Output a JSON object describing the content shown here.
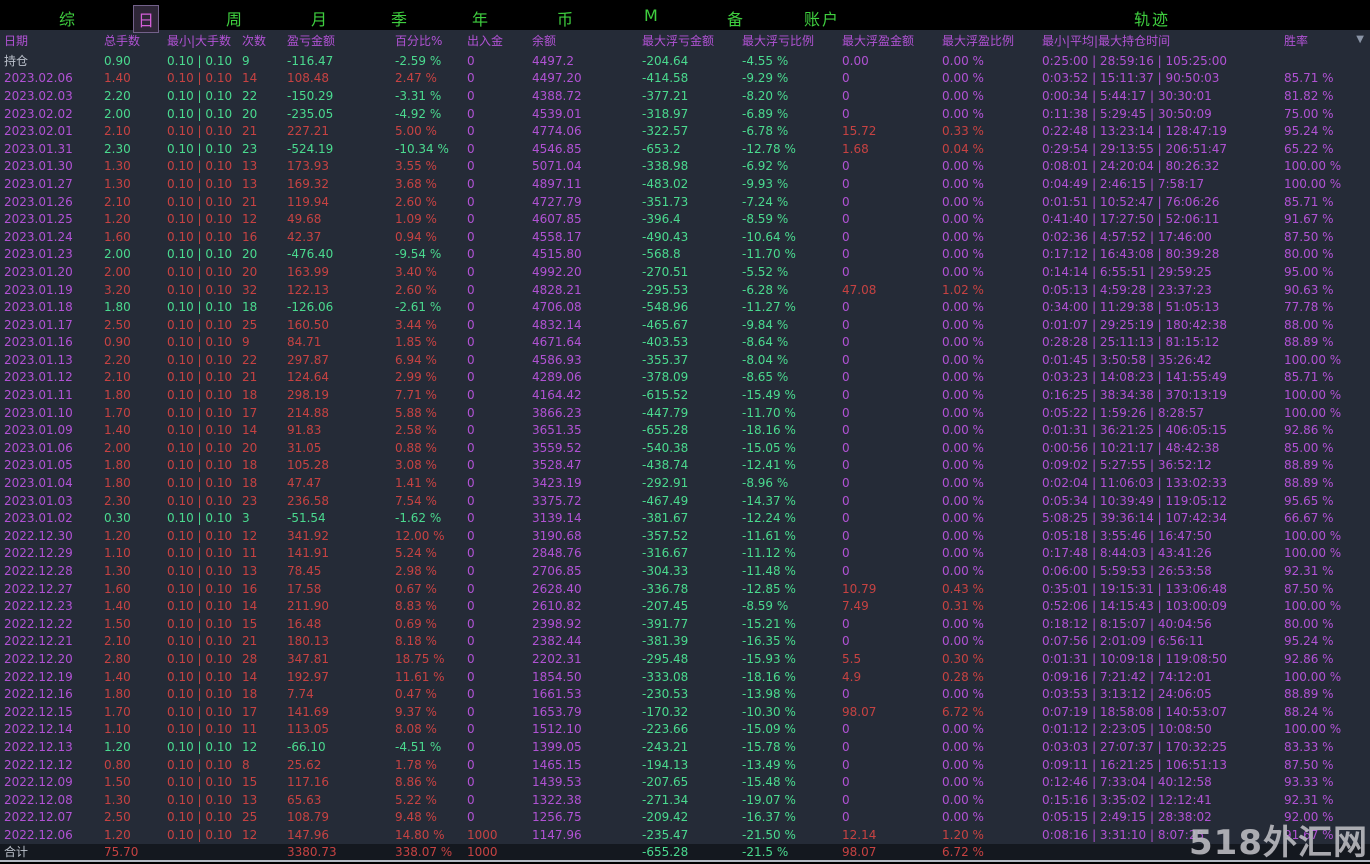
{
  "menu": {
    "items": [
      {
        "label": "综",
        "selected": false
      },
      {
        "label": "日",
        "selected": true
      },
      {
        "label": "周",
        "selected": false
      },
      {
        "label": "月",
        "selected": false
      },
      {
        "label": "季",
        "selected": false
      },
      {
        "label": "年",
        "selected": false
      },
      {
        "label": "币",
        "selected": false
      },
      {
        "label": "M",
        "selected": false
      },
      {
        "label": "备",
        "selected": false
      },
      {
        "label": "账户",
        "selected": false
      },
      {
        "label": "轨迹",
        "selected": false
      }
    ]
  },
  "icons": {
    "scroll_arrow": "▼"
  },
  "watermark": {
    "text": "518外汇网"
  },
  "colors": {
    "background": "#252b37",
    "menu_bg": "#000000",
    "purple": "#b152d4",
    "red": "#c64242",
    "green": "#4ada8f",
    "gray": "#bcc2cc",
    "menu_green": "#3fcf3f",
    "total_row_bg": "#14181f",
    "watermark": "#bebec3"
  },
  "table": {
    "columns": [
      "日期",
      "总手数",
      "最小|大手数",
      "次数",
      "盈亏金额",
      "百分比%",
      "出入金",
      "余额",
      "最大浮亏金额",
      "最大浮亏比例",
      "最大浮盈金额",
      "最大浮盈比例",
      "最小|平均|最大持仓时间",
      "胜率"
    ],
    "rows": [
      {
        "kind": "position",
        "trend": "down",
        "cells": [
          "持仓",
          "0.90",
          "0.10 | 0.10",
          "9",
          "-116.47",
          "-2.59 %",
          "0",
          "4497.2",
          "-204.64",
          "-4.55 %",
          "0.00",
          "0.00 %",
          "0:25:00 | 28:59:16 | 105:25:00",
          ""
        ]
      },
      {
        "kind": "date",
        "trend": "up",
        "cells": [
          "2023.02.06",
          "1.40",
          "0.10 | 0.10",
          "14",
          "108.48",
          "2.47 %",
          "0",
          "4497.20",
          "-414.58",
          "-9.29 %",
          "0",
          "0.00 %",
          "0:03:52 | 15:11:37 | 90:50:03",
          "85.71 %"
        ]
      },
      {
        "kind": "date",
        "trend": "down",
        "cells": [
          "2023.02.03",
          "2.20",
          "0.10 | 0.10",
          "22",
          "-150.29",
          "-3.31 %",
          "0",
          "4388.72",
          "-377.21",
          "-8.20 %",
          "0",
          "0.00 %",
          "0:00:34 | 5:44:17 | 30:30:01",
          "81.82 %"
        ]
      },
      {
        "kind": "date",
        "trend": "down",
        "cells": [
          "2023.02.02",
          "2.00",
          "0.10 | 0.10",
          "20",
          "-235.05",
          "-4.92 %",
          "0",
          "4539.01",
          "-318.97",
          "-6.89 %",
          "0",
          "0.00 %",
          "0:11:38 | 5:29:45 | 30:50:09",
          "75.00 %"
        ]
      },
      {
        "kind": "date",
        "trend": "up",
        "cells": [
          "2023.02.01",
          "2.10",
          "0.10 | 0.10",
          "21",
          "227.21",
          "5.00 %",
          "0",
          "4774.06",
          "-322.57",
          "-6.78 %",
          "15.72",
          "0.33 %",
          "0:22:48 | 13:23:14 | 128:47:19",
          "95.24 %"
        ]
      },
      {
        "kind": "date",
        "trend": "down",
        "cells": [
          "2023.01.31",
          "2.30",
          "0.10 | 0.10",
          "23",
          "-524.19",
          "-10.34 %",
          "0",
          "4546.85",
          "-653.2",
          "-12.78 %",
          "1.68",
          "0.04 %",
          "0:29:54 | 29:13:55 | 206:51:47",
          "65.22 %"
        ]
      },
      {
        "kind": "date",
        "trend": "up",
        "cells": [
          "2023.01.30",
          "1.30",
          "0.10 | 0.10",
          "13",
          "173.93",
          "3.55 %",
          "0",
          "5071.04",
          "-338.98",
          "-6.92 %",
          "0",
          "0.00 %",
          "0:08:01 | 24:20:04 | 80:26:32",
          "100.00 %"
        ]
      },
      {
        "kind": "date",
        "trend": "up",
        "cells": [
          "2023.01.27",
          "1.30",
          "0.10 | 0.10",
          "13",
          "169.32",
          "3.68 %",
          "0",
          "4897.11",
          "-483.02",
          "-9.93 %",
          "0",
          "0.00 %",
          "0:04:49 | 2:46:15 | 7:58:17",
          "100.00 %"
        ]
      },
      {
        "kind": "date",
        "trend": "up",
        "cells": [
          "2023.01.26",
          "2.10",
          "0.10 | 0.10",
          "21",
          "119.94",
          "2.60 %",
          "0",
          "4727.79",
          "-351.73",
          "-7.24 %",
          "0",
          "0.00 %",
          "0:01:51 | 10:52:47 | 76:06:26",
          "85.71 %"
        ]
      },
      {
        "kind": "date",
        "trend": "up",
        "cells": [
          "2023.01.25",
          "1.20",
          "0.10 | 0.10",
          "12",
          "49.68",
          "1.09 %",
          "0",
          "4607.85",
          "-396.4",
          "-8.59 %",
          "0",
          "0.00 %",
          "0:41:40 | 17:27:50 | 52:06:11",
          "91.67 %"
        ]
      },
      {
        "kind": "date",
        "trend": "up",
        "cells": [
          "2023.01.24",
          "1.60",
          "0.10 | 0.10",
          "16",
          "42.37",
          "0.94 %",
          "0",
          "4558.17",
          "-490.43",
          "-10.64 %",
          "0",
          "0.00 %",
          "0:02:36 | 4:57:52 | 17:46:00",
          "87.50 %"
        ]
      },
      {
        "kind": "date",
        "trend": "down",
        "cells": [
          "2023.01.23",
          "2.00",
          "0.10 | 0.10",
          "20",
          "-476.40",
          "-9.54 %",
          "0",
          "4515.80",
          "-568.8",
          "-11.70 %",
          "0",
          "0.00 %",
          "0:17:12 | 16:43:08 | 80:39:28",
          "80.00 %"
        ]
      },
      {
        "kind": "date",
        "trend": "up",
        "cells": [
          "2023.01.20",
          "2.00",
          "0.10 | 0.10",
          "20",
          "163.99",
          "3.40 %",
          "0",
          "4992.20",
          "-270.51",
          "-5.52 %",
          "0",
          "0.00 %",
          "0:14:14 | 6:55:51 | 29:59:25",
          "95.00 %"
        ]
      },
      {
        "kind": "date",
        "trend": "up",
        "cells": [
          "2023.01.19",
          "3.20",
          "0.10 | 0.10",
          "32",
          "122.13",
          "2.60 %",
          "0",
          "4828.21",
          "-295.53",
          "-6.28 %",
          "47.08",
          "1.02 %",
          "0:05:13 | 4:59:28 | 23:37:23",
          "90.63 %"
        ]
      },
      {
        "kind": "date",
        "trend": "down",
        "cells": [
          "2023.01.18",
          "1.80",
          "0.10 | 0.10",
          "18",
          "-126.06",
          "-2.61 %",
          "0",
          "4706.08",
          "-548.96",
          "-11.27 %",
          "0",
          "0.00 %",
          "0:34:00 | 11:29:38 | 51:05:13",
          "77.78 %"
        ]
      },
      {
        "kind": "date",
        "trend": "up",
        "cells": [
          "2023.01.17",
          "2.50",
          "0.10 | 0.10",
          "25",
          "160.50",
          "3.44 %",
          "0",
          "4832.14",
          "-465.67",
          "-9.84 %",
          "0",
          "0.00 %",
          "0:01:07 | 29:25:19 | 180:42:38",
          "88.00 %"
        ]
      },
      {
        "kind": "date",
        "trend": "up",
        "cells": [
          "2023.01.16",
          "0.90",
          "0.10 | 0.10",
          "9",
          "84.71",
          "1.85 %",
          "0",
          "4671.64",
          "-403.53",
          "-8.64 %",
          "0",
          "0.00 %",
          "0:28:28 | 25:11:13 | 81:15:12",
          "88.89 %"
        ]
      },
      {
        "kind": "date",
        "trend": "up",
        "cells": [
          "2023.01.13",
          "2.20",
          "0.10 | 0.10",
          "22",
          "297.87",
          "6.94 %",
          "0",
          "4586.93",
          "-355.37",
          "-8.04 %",
          "0",
          "0.00 %",
          "0:01:45 | 3:50:58 | 35:26:42",
          "100.00 %"
        ]
      },
      {
        "kind": "date",
        "trend": "up",
        "cells": [
          "2023.01.12",
          "2.10",
          "0.10 | 0.10",
          "21",
          "124.64",
          "2.99 %",
          "0",
          "4289.06",
          "-378.09",
          "-8.65 %",
          "0",
          "0.00 %",
          "0:03:23 | 14:08:23 | 141:55:49",
          "85.71 %"
        ]
      },
      {
        "kind": "date",
        "trend": "up",
        "cells": [
          "2023.01.11",
          "1.80",
          "0.10 | 0.10",
          "18",
          "298.19",
          "7.71 %",
          "0",
          "4164.42",
          "-615.52",
          "-15.49 %",
          "0",
          "0.00 %",
          "0:16:25 | 38:34:38 | 370:13:19",
          "100.00 %"
        ]
      },
      {
        "kind": "date",
        "trend": "up",
        "cells": [
          "2023.01.10",
          "1.70",
          "0.10 | 0.10",
          "17",
          "214.88",
          "5.88 %",
          "0",
          "3866.23",
          "-447.79",
          "-11.70 %",
          "0",
          "0.00 %",
          "0:05:22 | 1:59:26 | 8:28:57",
          "100.00 %"
        ]
      },
      {
        "kind": "date",
        "trend": "up",
        "cells": [
          "2023.01.09",
          "1.40",
          "0.10 | 0.10",
          "14",
          "91.83",
          "2.58 %",
          "0",
          "3651.35",
          "-655.28",
          "-18.16 %",
          "0",
          "0.00 %",
          "0:01:31 | 36:21:25 | 406:05:15",
          "92.86 %"
        ]
      },
      {
        "kind": "date",
        "trend": "up",
        "cells": [
          "2023.01.06",
          "2.00",
          "0.10 | 0.10",
          "20",
          "31.05",
          "0.88 %",
          "0",
          "3559.52",
          "-540.38",
          "-15.05 %",
          "0",
          "0.00 %",
          "0:00:56 | 10:21:17 | 48:42:38",
          "85.00 %"
        ]
      },
      {
        "kind": "date",
        "trend": "up",
        "cells": [
          "2023.01.05",
          "1.80",
          "0.10 | 0.10",
          "18",
          "105.28",
          "3.08 %",
          "0",
          "3528.47",
          "-438.74",
          "-12.41 %",
          "0",
          "0.00 %",
          "0:09:02 | 5:27:55 | 36:52:12",
          "88.89 %"
        ]
      },
      {
        "kind": "date",
        "trend": "up",
        "cells": [
          "2023.01.04",
          "1.80",
          "0.10 | 0.10",
          "18",
          "47.47",
          "1.41 %",
          "0",
          "3423.19",
          "-292.91",
          "-8.96 %",
          "0",
          "0.00 %",
          "0:02:04 | 11:06:03 | 133:02:33",
          "88.89 %"
        ]
      },
      {
        "kind": "date",
        "trend": "up",
        "cells": [
          "2023.01.03",
          "2.30",
          "0.10 | 0.10",
          "23",
          "236.58",
          "7.54 %",
          "0",
          "3375.72",
          "-467.49",
          "-14.37 %",
          "0",
          "0.00 %",
          "0:05:34 | 10:39:49 | 119:05:12",
          "95.65 %"
        ]
      },
      {
        "kind": "date",
        "trend": "down",
        "cells": [
          "2023.01.02",
          "0.30",
          "0.10 | 0.10",
          "3",
          "-51.54",
          "-1.62 %",
          "0",
          "3139.14",
          "-381.67",
          "-12.24 %",
          "0",
          "0.00 %",
          "5:08:25 | 39:36:14 | 107:42:34",
          "66.67 %"
        ]
      },
      {
        "kind": "date",
        "trend": "up",
        "cells": [
          "2022.12.30",
          "1.20",
          "0.10 | 0.10",
          "12",
          "341.92",
          "12.00 %",
          "0",
          "3190.68",
          "-357.52",
          "-11.61 %",
          "0",
          "0.00 %",
          "0:05:18 | 3:55:46 | 16:47:50",
          "100.00 %"
        ]
      },
      {
        "kind": "date",
        "trend": "up",
        "cells": [
          "2022.12.29",
          "1.10",
          "0.10 | 0.10",
          "11",
          "141.91",
          "5.24 %",
          "0",
          "2848.76",
          "-316.67",
          "-11.12 %",
          "0",
          "0.00 %",
          "0:17:48 | 8:44:03 | 43:41:26",
          "100.00 %"
        ]
      },
      {
        "kind": "date",
        "trend": "up",
        "cells": [
          "2022.12.28",
          "1.30",
          "0.10 | 0.10",
          "13",
          "78.45",
          "2.98 %",
          "0",
          "2706.85",
          "-304.33",
          "-11.48 %",
          "0",
          "0.00 %",
          "0:06:00 | 5:59:53 | 26:53:58",
          "92.31 %"
        ]
      },
      {
        "kind": "date",
        "trend": "up",
        "cells": [
          "2022.12.27",
          "1.60",
          "0.10 | 0.10",
          "16",
          "17.58",
          "0.67 %",
          "0",
          "2628.40",
          "-336.78",
          "-12.85 %",
          "10.79",
          "0.43 %",
          "0:35:01 | 19:15:31 | 133:06:48",
          "87.50 %"
        ]
      },
      {
        "kind": "date",
        "trend": "up",
        "cells": [
          "2022.12.23",
          "1.40",
          "0.10 | 0.10",
          "14",
          "211.90",
          "8.83 %",
          "0",
          "2610.82",
          "-207.45",
          "-8.59 %",
          "7.49",
          "0.31 %",
          "0:52:06 | 14:15:43 | 103:00:09",
          "100.00 %"
        ]
      },
      {
        "kind": "date",
        "trend": "up",
        "cells": [
          "2022.12.22",
          "1.50",
          "0.10 | 0.10",
          "15",
          "16.48",
          "0.69 %",
          "0",
          "2398.92",
          "-391.77",
          "-15.21 %",
          "0",
          "0.00 %",
          "0:18:12 | 8:15:07 | 40:04:56",
          "80.00 %"
        ]
      },
      {
        "kind": "date",
        "trend": "up",
        "cells": [
          "2022.12.21",
          "2.10",
          "0.10 | 0.10",
          "21",
          "180.13",
          "8.18 %",
          "0",
          "2382.44",
          "-381.39",
          "-16.35 %",
          "0",
          "0.00 %",
          "0:07:56 | 2:01:09 | 6:56:11",
          "95.24 %"
        ]
      },
      {
        "kind": "date",
        "trend": "up",
        "cells": [
          "2022.12.20",
          "2.80",
          "0.10 | 0.10",
          "28",
          "347.81",
          "18.75 %",
          "0",
          "2202.31",
          "-295.48",
          "-15.93 %",
          "5.5",
          "0.30 %",
          "0:01:31 | 10:09:18 | 119:08:50",
          "92.86 %"
        ]
      },
      {
        "kind": "date",
        "trend": "up",
        "cells": [
          "2022.12.19",
          "1.40",
          "0.10 | 0.10",
          "14",
          "192.97",
          "11.61 %",
          "0",
          "1854.50",
          "-333.08",
          "-18.16 %",
          "4.9",
          "0.28 %",
          "0:09:16 | 7:21:42 | 74:12:01",
          "100.00 %"
        ]
      },
      {
        "kind": "date",
        "trend": "up",
        "cells": [
          "2022.12.16",
          "1.80",
          "0.10 | 0.10",
          "18",
          "7.74",
          "0.47 %",
          "0",
          "1661.53",
          "-230.53",
          "-13.98 %",
          "0",
          "0.00 %",
          "0:03:53 | 3:13:12 | 24:06:05",
          "88.89 %"
        ]
      },
      {
        "kind": "date",
        "trend": "up",
        "cells": [
          "2022.12.15",
          "1.70",
          "0.10 | 0.10",
          "17",
          "141.69",
          "9.37 %",
          "0",
          "1653.79",
          "-170.32",
          "-10.30 %",
          "98.07",
          "6.72 %",
          "0:07:19 | 18:58:08 | 140:53:07",
          "88.24 %"
        ]
      },
      {
        "kind": "date",
        "trend": "up",
        "cells": [
          "2022.12.14",
          "1.10",
          "0.10 | 0.10",
          "11",
          "113.05",
          "8.08 %",
          "0",
          "1512.10",
          "-223.66",
          "-15.09 %",
          "0",
          "0.00 %",
          "0:01:12 | 2:23:05 | 10:08:50",
          "100.00 %"
        ]
      },
      {
        "kind": "date",
        "trend": "down",
        "cells": [
          "2022.12.13",
          "1.20",
          "0.10 | 0.10",
          "12",
          "-66.10",
          "-4.51 %",
          "0",
          "1399.05",
          "-243.21",
          "-15.78 %",
          "0",
          "0.00 %",
          "0:03:03 | 27:07:37 | 170:32:25",
          "83.33 %"
        ]
      },
      {
        "kind": "date",
        "trend": "up",
        "cells": [
          "2022.12.12",
          "0.80",
          "0.10 | 0.10",
          "8",
          "25.62",
          "1.78 %",
          "0",
          "1465.15",
          "-194.13",
          "-13.49 %",
          "0",
          "0.00 %",
          "0:09:11 | 16:21:25 | 106:51:13",
          "87.50 %"
        ]
      },
      {
        "kind": "date",
        "trend": "up",
        "cells": [
          "2022.12.09",
          "1.50",
          "0.10 | 0.10",
          "15",
          "117.16",
          "8.86 %",
          "0",
          "1439.53",
          "-207.65",
          "-15.48 %",
          "0",
          "0.00 %",
          "0:12:46 | 7:33:04 | 40:12:58",
          "93.33 %"
        ]
      },
      {
        "kind": "date",
        "trend": "up",
        "cells": [
          "2022.12.08",
          "1.30",
          "0.10 | 0.10",
          "13",
          "65.63",
          "5.22 %",
          "0",
          "1322.38",
          "-271.34",
          "-19.07 %",
          "0",
          "0.00 %",
          "0:15:16 | 3:35:02 | 12:12:41",
          "92.31 %"
        ]
      },
      {
        "kind": "date",
        "trend": "up",
        "cells": [
          "2022.12.07",
          "2.50",
          "0.10 | 0.10",
          "25",
          "108.79",
          "9.48 %",
          "0",
          "1256.75",
          "-209.42",
          "-16.37 %",
          "0",
          "0.00 %",
          "0:05:15 | 2:49:15 | 28:38:02",
          "92.00 %"
        ]
      },
      {
        "kind": "date",
        "trend": "up",
        "cells": [
          "2022.12.06",
          "1.20",
          "0.10 | 0.10",
          "12",
          "147.96",
          "14.80 %",
          "1000",
          "1147.96",
          "-235.47",
          "-21.50 %",
          "12.14",
          "1.20 %",
          "0:08:16 | 3:31:10 | 8:07:25",
          "91.67 %"
        ]
      },
      {
        "kind": "total",
        "trend": "up",
        "cells": [
          "合计",
          "75.70",
          "",
          "",
          "3380.73",
          "338.07 %",
          "1000",
          "",
          "-655.28",
          "-21.5 %",
          "98.07",
          "6.72 %",
          "",
          ""
        ]
      }
    ]
  }
}
